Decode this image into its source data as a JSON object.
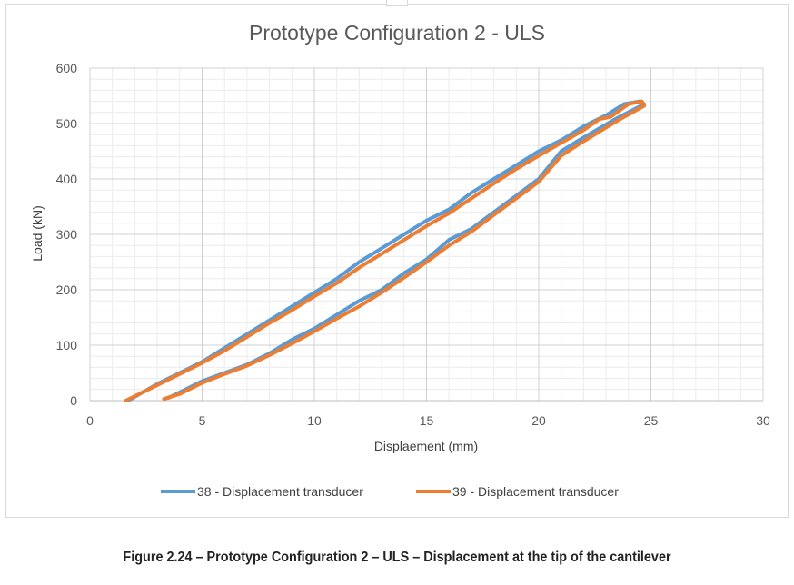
{
  "chart_data": {
    "type": "line",
    "title": "Prototype Configuration 2 - ULS",
    "xlabel": "Displaement (mm)",
    "ylabel": "Load (kN)",
    "xlim": [
      0,
      30
    ],
    "ylim": [
      0,
      600
    ],
    "x_ticks": [
      "0",
      "5",
      "10",
      "15",
      "20",
      "25",
      "30"
    ],
    "y_ticks": [
      "0",
      "100",
      "200",
      "300",
      "400",
      "500",
      "600"
    ],
    "grid": true,
    "legend_position": "bottom",
    "series": [
      {
        "name": "38 - Displacement transducer",
        "color": "#5b9bd5",
        "points": [
          [
            1.7,
            0
          ],
          [
            3.0,
            30
          ],
          [
            4.0,
            50
          ],
          [
            5.0,
            70
          ],
          [
            6.0,
            95
          ],
          [
            7.0,
            120
          ],
          [
            8.0,
            145
          ],
          [
            9.0,
            170
          ],
          [
            10.0,
            195
          ],
          [
            11.0,
            220
          ],
          [
            12.0,
            250
          ],
          [
            13.0,
            275
          ],
          [
            14.0,
            300
          ],
          [
            15.0,
            325
          ],
          [
            16.0,
            345
          ],
          [
            17.0,
            375
          ],
          [
            18.0,
            400
          ],
          [
            19.0,
            425
          ],
          [
            20.0,
            450
          ],
          [
            21.0,
            470
          ],
          [
            22.0,
            495
          ],
          [
            23.0,
            515
          ],
          [
            23.8,
            535
          ],
          [
            24.5,
            540
          ],
          [
            24.7,
            535
          ],
          [
            23.5,
            510
          ],
          [
            22.0,
            475
          ],
          [
            21.0,
            450
          ],
          [
            20.0,
            400
          ],
          [
            19.0,
            370
          ],
          [
            18.0,
            340
          ],
          [
            17.0,
            310
          ],
          [
            16.0,
            290
          ],
          [
            15.0,
            255
          ],
          [
            14.0,
            230
          ],
          [
            13.0,
            200
          ],
          [
            12.0,
            180
          ],
          [
            11.0,
            155
          ],
          [
            10.0,
            130
          ],
          [
            9.0,
            110
          ],
          [
            8.0,
            85
          ],
          [
            7.0,
            65
          ],
          [
            6.0,
            50
          ],
          [
            5.0,
            35
          ],
          [
            4.0,
            15
          ],
          [
            3.5,
            5
          ]
        ]
      },
      {
        "name": "39 - Displacement transducer",
        "color": "#ed7d31",
        "points": [
          [
            1.6,
            0
          ],
          [
            3.0,
            28
          ],
          [
            4.0,
            48
          ],
          [
            5.0,
            68
          ],
          [
            6.0,
            90
          ],
          [
            7.0,
            115
          ],
          [
            8.0,
            140
          ],
          [
            9.0,
            163
          ],
          [
            10.0,
            188
          ],
          [
            11.0,
            212
          ],
          [
            12.0,
            240
          ],
          [
            13.0,
            265
          ],
          [
            14.0,
            290
          ],
          [
            15.0,
            315
          ],
          [
            16.0,
            338
          ],
          [
            17.0,
            365
          ],
          [
            18.0,
            392
          ],
          [
            19.0,
            418
          ],
          [
            20.0,
            442
          ],
          [
            21.0,
            465
          ],
          [
            22.0,
            488
          ],
          [
            22.7,
            508
          ],
          [
            23.2,
            512
          ],
          [
            24.0,
            535
          ],
          [
            24.6,
            540
          ],
          [
            24.7,
            532
          ],
          [
            23.5,
            505
          ],
          [
            22.0,
            468
          ],
          [
            21.0,
            442
          ],
          [
            20.0,
            395
          ],
          [
            19.0,
            365
          ],
          [
            18.0,
            335
          ],
          [
            17.0,
            305
          ],
          [
            16.0,
            280
          ],
          [
            15.0,
            250
          ],
          [
            14.0,
            222
          ],
          [
            13.0,
            195
          ],
          [
            12.0,
            170
          ],
          [
            11.0,
            148
          ],
          [
            10.0,
            125
          ],
          [
            9.0,
            103
          ],
          [
            8.0,
            82
          ],
          [
            7.0,
            63
          ],
          [
            6.0,
            48
          ],
          [
            5.0,
            32
          ],
          [
            4.0,
            12
          ],
          [
            3.3,
            3
          ]
        ]
      }
    ]
  },
  "caption": "Figure 2.24 – Prototype Configuration 2 – ULS – Displacement at the tip of the cantilever"
}
